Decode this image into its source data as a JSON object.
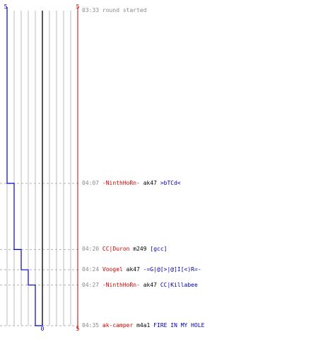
{
  "chart_data": {
    "type": "line",
    "title": "",
    "xlabel": "",
    "ylabel": "",
    "xlim": [
      0,
      10
    ],
    "scale_max_left": "5",
    "scale_max_right": "5",
    "scale_zero": "0",
    "scale_max_right_bottom": "5",
    "series": [
      {
        "values_over_events": [
          {
            "time": "03:33",
            "x": 0
          },
          {
            "time": "04:07",
            "x": 1
          },
          {
            "time": "04:20",
            "x": 2
          },
          {
            "time": "04:24",
            "x": 3
          },
          {
            "time": "04:27",
            "x": 4
          },
          {
            "time": "04:35",
            "x": 5
          }
        ]
      }
    ],
    "events": [
      {
        "time": "03:33",
        "text": "round started"
      },
      {
        "time": "04:07",
        "killer": "-NinthHoRn-",
        "weapon": "ak47",
        "victim": ">bTCd<"
      },
      {
        "time": "04:20",
        "killer": "CC|Duron",
        "weapon": "m249",
        "victim": "[gcc]"
      },
      {
        "time": "04:24",
        "killer": "Voogel",
        "weapon": "ak47",
        "victim": "-=G|@[>|@]I[<)R=-"
      },
      {
        "time": "04:27",
        "killer": "-NinthHoRn-",
        "weapon": "ak47",
        "victim": "CC|Killabee"
      },
      {
        "time": "04:35",
        "killer": "ak-camper",
        "weapon": "m4a1",
        "victim": "FIRE IN MY HOLE"
      }
    ],
    "colors": {
      "team_a": "#0000cc",
      "team_b": "#cc0000",
      "grid": "#bbbbbb",
      "center": "#555555",
      "event_time": "#8a8a8a",
      "killer": "#cc0000",
      "weapon": "#000000",
      "victim": "#0000aa"
    }
  }
}
